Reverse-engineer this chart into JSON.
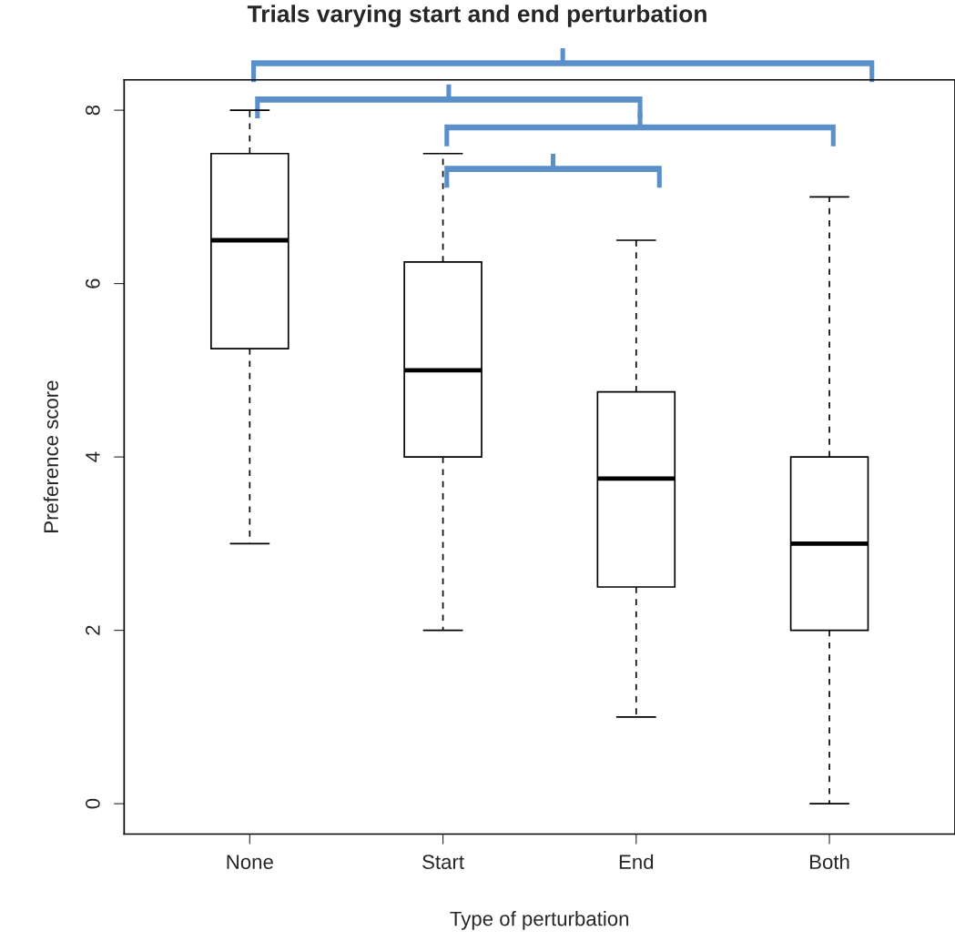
{
  "chart_data": {
    "type": "box",
    "title": "Trials varying start and end perturbation",
    "xlabel": "Type of perturbation",
    "ylabel": "Preference score",
    "categories": [
      "None",
      "Start",
      "End",
      "Both"
    ],
    "boxes": [
      {
        "low": 3,
        "q1": 5.25,
        "median": 6.5,
        "q3": 7.5,
        "high": 8
      },
      {
        "low": 2,
        "q1": 4,
        "median": 5,
        "q3": 6.25,
        "high": 7.5
      },
      {
        "low": 1,
        "q1": 2.5,
        "median": 3.75,
        "q3": 4.75,
        "high": 6.5
      },
      {
        "low": 0,
        "q1": 2,
        "median": 3,
        "q3": 4,
        "high": 7
      }
    ],
    "color": "#ffffff",
    "ylim": [
      -0.35,
      8.35
    ],
    "yticks": [
      0,
      2,
      4,
      6,
      8
    ],
    "grid": false
  }
}
